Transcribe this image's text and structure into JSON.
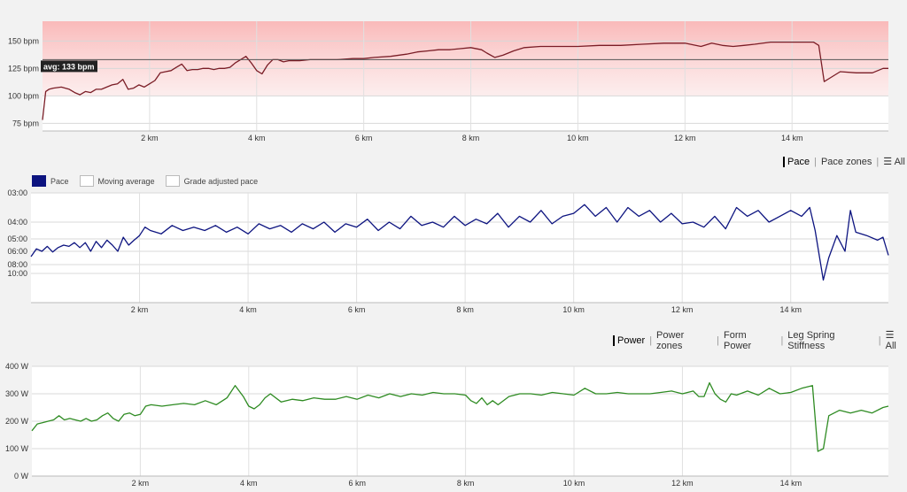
{
  "hr_chart": {
    "chart_data": {
      "type": "line",
      "unit": "bpm",
      "xlim": [
        0,
        15.8
      ],
      "ylim": [
        68,
        168
      ],
      "yticks": [
        75,
        100,
        125,
        150
      ],
      "ytick_labels": [
        "75 bpm",
        "100 bpm",
        "125 bpm",
        "150 bpm"
      ],
      "xticks": [
        2,
        4,
        6,
        8,
        10,
        12,
        14
      ],
      "xtick_labels": [
        "2 km",
        "4 km",
        "6 km",
        "8 km",
        "10 km",
        "12 km",
        "14 km"
      ],
      "avg_label": "avg: 133 bpm",
      "avg_value": 133,
      "series": [
        {
          "color": "#7a1d26",
          "x": [
            0,
            0.06,
            0.12,
            0.2,
            0.35,
            0.5,
            0.6,
            0.7,
            0.8,
            0.9,
            1.0,
            1.1,
            1.2,
            1.3,
            1.4,
            1.5,
            1.6,
            1.7,
            1.8,
            1.9,
            2.0,
            2.1,
            2.2,
            2.3,
            2.4,
            2.5,
            2.6,
            2.7,
            2.8,
            2.9,
            3.0,
            3.1,
            3.2,
            3.3,
            3.4,
            3.5,
            3.6,
            3.7,
            3.8,
            3.9,
            4.0,
            4.1,
            4.2,
            4.3,
            4.4,
            4.5,
            4.6,
            4.8,
            5.0,
            5.2,
            5.5,
            5.8,
            6.0,
            6.2,
            6.5,
            6.8,
            7.0,
            7.2,
            7.4,
            7.6,
            7.8,
            8.0,
            8.2,
            8.3,
            8.45,
            8.6,
            8.8,
            9.0,
            9.3,
            9.6,
            10.0,
            10.4,
            10.8,
            11.2,
            11.6,
            12.0,
            12.3,
            12.5,
            12.7,
            12.9,
            13.1,
            13.3,
            13.6,
            13.9,
            14.2,
            14.4,
            14.5,
            14.6,
            14.7,
            14.9,
            15.2,
            15.5,
            15.7,
            15.8
          ],
          "y": [
            78,
            104,
            106,
            107,
            108,
            106,
            103,
            101,
            104,
            103,
            106,
            106,
            108,
            110,
            111,
            115,
            106,
            107,
            110,
            108,
            111,
            114,
            121,
            122,
            123,
            126,
            129,
            123,
            124,
            124,
            125,
            125,
            124,
            125,
            125,
            126,
            130,
            133,
            136,
            130,
            123,
            120,
            128,
            133,
            133,
            131,
            132,
            132,
            133,
            133,
            133,
            134,
            134,
            135,
            136,
            138,
            140,
            141,
            142,
            142,
            143,
            144,
            142,
            139,
            135,
            137,
            141,
            144,
            145,
            145,
            145,
            146,
            146,
            147,
            148,
            148,
            145,
            148,
            146,
            145,
            146,
            147,
            149,
            149,
            149,
            149,
            146,
            113,
            116,
            122,
            121,
            121,
            125,
            125
          ]
        }
      ]
    }
  },
  "pace_toolbar": {
    "items": [
      "Pace",
      "Pace zones",
      "All"
    ],
    "active": "Pace"
  },
  "pace_legend": {
    "items": [
      {
        "label": "Pace",
        "color": "#0d1480"
      },
      {
        "label": "Moving average",
        "color": "#ffffff"
      },
      {
        "label": "Grade adjusted pace",
        "color": "#ffffff"
      }
    ]
  },
  "pace_chart": {
    "chart_data": {
      "type": "line",
      "unit": "min/km",
      "xlim": [
        0,
        15.8
      ],
      "yticks": [
        3,
        4,
        5,
        6,
        8,
        10
      ],
      "ytick_labels": [
        "03:00",
        "04:00",
        "05:00",
        "06:00",
        "08:00",
        "10:00"
      ],
      "xticks": [
        2,
        4,
        6,
        8,
        10,
        12,
        14
      ],
      "xtick_labels": [
        "2 km",
        "4 km",
        "6 km",
        "8 km",
        "10 km",
        "12 km",
        "14 km"
      ],
      "series": [
        {
          "name": "Pace",
          "color": "#0d1480",
          "x": [
            0,
            0.1,
            0.2,
            0.3,
            0.4,
            0.5,
            0.6,
            0.7,
            0.8,
            0.9,
            1.0,
            1.1,
            1.2,
            1.3,
            1.4,
            1.5,
            1.6,
            1.7,
            1.8,
            1.9,
            2.0,
            2.1,
            2.2,
            2.4,
            2.6,
            2.8,
            3.0,
            3.2,
            3.4,
            3.6,
            3.8,
            4.0,
            4.2,
            4.4,
            4.6,
            4.8,
            5.0,
            5.2,
            5.4,
            5.6,
            5.8,
            6.0,
            6.2,
            6.4,
            6.6,
            6.8,
            7.0,
            7.2,
            7.4,
            7.6,
            7.8,
            8.0,
            8.2,
            8.4,
            8.6,
            8.8,
            9.0,
            9.2,
            9.4,
            9.6,
            9.8,
            10.0,
            10.2,
            10.4,
            10.6,
            10.8,
            11.0,
            11.2,
            11.4,
            11.6,
            11.8,
            12.0,
            12.2,
            12.4,
            12.6,
            12.8,
            13.0,
            13.2,
            13.4,
            13.6,
            13.8,
            14.0,
            14.2,
            14.35,
            14.45,
            14.6,
            14.7,
            14.85,
            15.0,
            15.1,
            15.2,
            15.4,
            15.6,
            15.7,
            15.8
          ],
          "y": [
            6.8,
            5.8,
            6.0,
            5.6,
            6.1,
            5.7,
            5.5,
            5.6,
            5.3,
            5.7,
            5.3,
            6.0,
            5.2,
            5.7,
            5.1,
            5.5,
            6.0,
            4.9,
            5.5,
            5.1,
            4.8,
            4.3,
            4.5,
            4.7,
            4.2,
            4.5,
            4.3,
            4.5,
            4.2,
            4.6,
            4.3,
            4.7,
            4.1,
            4.4,
            4.2,
            4.6,
            4.1,
            4.4,
            4.0,
            4.6,
            4.1,
            4.3,
            3.9,
            4.5,
            4.0,
            4.4,
            3.8,
            4.2,
            4.0,
            4.3,
            3.8,
            4.2,
            3.9,
            4.1,
            3.7,
            4.3,
            3.8,
            4.0,
            3.6,
            4.1,
            3.8,
            3.7,
            3.4,
            3.8,
            3.5,
            4.0,
            3.5,
            3.8,
            3.6,
            4.0,
            3.7,
            4.1,
            4.0,
            4.3,
            3.8,
            4.4,
            3.5,
            3.8,
            3.6,
            4.0,
            3.8,
            3.6,
            3.8,
            3.5,
            4.5,
            11.5,
            7.0,
            4.8,
            6.0,
            3.6,
            4.6,
            4.8,
            5.1,
            4.9,
            6.6
          ]
        }
      ]
    }
  },
  "power_toolbar": {
    "items": [
      "Power",
      "Power zones",
      "Form Power",
      "Leg Spring Stiffness",
      "All"
    ],
    "active": "Power"
  },
  "power_chart": {
    "chart_data": {
      "type": "line",
      "unit": "W",
      "xlim": [
        0,
        15.8
      ],
      "ylim": [
        0,
        400
      ],
      "yticks": [
        0,
        100,
        200,
        300,
        400
      ],
      "ytick_labels": [
        "0 W",
        "100 W",
        "200 W",
        "300 W",
        "400 W"
      ],
      "xticks": [
        2,
        4,
        6,
        8,
        10,
        12,
        14
      ],
      "xtick_labels": [
        "2 km",
        "4 km",
        "6 km",
        "8 km",
        "10 km",
        "12 km",
        "14 km"
      ],
      "series": [
        {
          "color": "#2e8b22",
          "x": [
            0,
            0.1,
            0.2,
            0.3,
            0.4,
            0.5,
            0.6,
            0.7,
            0.8,
            0.9,
            1.0,
            1.1,
            1.2,
            1.3,
            1.4,
            1.5,
            1.6,
            1.7,
            1.8,
            1.9,
            2.0,
            2.1,
            2.2,
            2.4,
            2.6,
            2.8,
            3.0,
            3.2,
            3.4,
            3.6,
            3.75,
            3.9,
            4.0,
            4.1,
            4.2,
            4.3,
            4.4,
            4.6,
            4.8,
            5.0,
            5.2,
            5.4,
            5.6,
            5.8,
            6.0,
            6.2,
            6.4,
            6.6,
            6.8,
            7.0,
            7.2,
            7.4,
            7.6,
            7.8,
            8.0,
            8.1,
            8.2,
            8.3,
            8.4,
            8.5,
            8.6,
            8.8,
            9.0,
            9.2,
            9.4,
            9.6,
            9.8,
            10.0,
            10.2,
            10.4,
            10.6,
            10.8,
            11.0,
            11.2,
            11.4,
            11.6,
            11.8,
            12.0,
            12.2,
            12.3,
            12.4,
            12.5,
            12.6,
            12.7,
            12.8,
            12.9,
            13.0,
            13.2,
            13.4,
            13.6,
            13.8,
            14.0,
            14.2,
            14.4,
            14.5,
            14.6,
            14.7,
            14.9,
            15.1,
            15.3,
            15.5,
            15.7,
            15.8
          ],
          "y": [
            165,
            190,
            195,
            200,
            205,
            220,
            205,
            210,
            205,
            200,
            210,
            200,
            205,
            220,
            230,
            210,
            200,
            225,
            230,
            220,
            225,
            255,
            260,
            255,
            260,
            265,
            260,
            275,
            260,
            285,
            330,
            290,
            255,
            245,
            260,
            285,
            300,
            270,
            280,
            275,
            285,
            280,
            280,
            290,
            280,
            295,
            285,
            300,
            290,
            300,
            295,
            305,
            300,
            300,
            295,
            275,
            265,
            285,
            260,
            275,
            260,
            290,
            300,
            300,
            295,
            305,
            300,
            295,
            320,
            300,
            300,
            305,
            300,
            300,
            300,
            305,
            310,
            300,
            310,
            290,
            290,
            340,
            300,
            280,
            270,
            300,
            295,
            310,
            295,
            320,
            300,
            305,
            320,
            330,
            90,
            100,
            220,
            240,
            230,
            240,
            230,
            250,
            255
          ]
        }
      ]
    }
  }
}
